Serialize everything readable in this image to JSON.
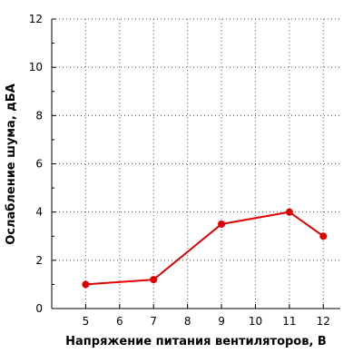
{
  "chart_data": {
    "type": "line",
    "xlabel": "Напряжение питания вентиляторов, В",
    "ylabel": "Ослабление шума, дБА",
    "xlim": [
      4,
      12.5
    ],
    "ylim": [
      0,
      12
    ],
    "x_ticks": [
      5,
      6,
      7,
      8,
      9,
      10,
      11,
      12
    ],
    "y_ticks": [
      0,
      2,
      4,
      6,
      8,
      10,
      12
    ],
    "grid": true,
    "series": [
      {
        "color": "#e00000",
        "points": [
          {
            "x": 5,
            "y": 1.0
          },
          {
            "x": 7,
            "y": 1.2
          },
          {
            "x": 9,
            "y": 3.5
          },
          {
            "x": 11,
            "y": 4.0
          },
          {
            "x": 12,
            "y": 3.0
          }
        ]
      }
    ]
  }
}
